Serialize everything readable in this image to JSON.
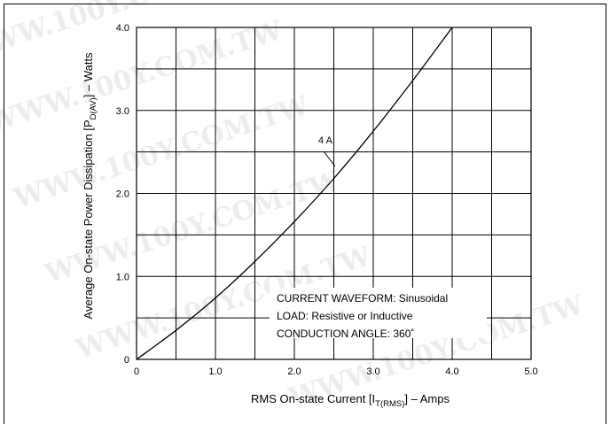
{
  "watermark": {
    "text": "WWW.100Y.COM.TW"
  },
  "chart_data": {
    "type": "line",
    "xlabel": {
      "main": "RMS On-state Current [I",
      "sub": "T(RMS)",
      "tail": "] – Amps"
    },
    "ylabel": {
      "main": "Average On-state Power Dissipation [P",
      "sub": "D(AV)",
      "tail": "] – Watts"
    },
    "xlim": [
      0,
      5
    ],
    "ylim": [
      0,
      4
    ],
    "xticks": [
      0,
      0.5,
      1,
      1.5,
      2,
      2.5,
      3,
      3.5,
      4,
      4.5,
      5
    ],
    "yticks": [
      0,
      0.5,
      1,
      1.5,
      2,
      2.5,
      3,
      3.5,
      4
    ],
    "xtick_labels": [
      {
        "value": 0,
        "label": "0"
      },
      {
        "value": 1,
        "label": "1.0"
      },
      {
        "value": 2,
        "label": "2.0"
      },
      {
        "value": 3,
        "label": "3.0"
      },
      {
        "value": 4,
        "label": "4.0"
      },
      {
        "value": 5,
        "label": "5.0"
      }
    ],
    "ytick_labels": [
      {
        "value": 0,
        "label": "0"
      },
      {
        "value": 1,
        "label": "1.0"
      },
      {
        "value": 2,
        "label": "2.0"
      },
      {
        "value": 3,
        "label": "3.0"
      },
      {
        "value": 4,
        "label": "4.0"
      }
    ],
    "grid": true,
    "series": [
      {
        "name": "4 A",
        "x": [
          0,
          0.5,
          1.0,
          1.5,
          2.0,
          2.5,
          3.0,
          3.5,
          4.0
        ],
        "y": [
          0,
          0.35,
          0.74,
          1.18,
          1.66,
          2.18,
          2.75,
          3.36,
          4.0
        ]
      }
    ],
    "series_label": {
      "text": "4 A",
      "at": [
        2.55,
        2.37
      ],
      "points_to": [
        2.52,
        2.24
      ]
    },
    "annotations": [
      "CURRENT WAVEFORM: Sinusoidal",
      "LOAD: Resistive or Inductive",
      "CONDUCTION ANGLE: 360˚"
    ]
  }
}
